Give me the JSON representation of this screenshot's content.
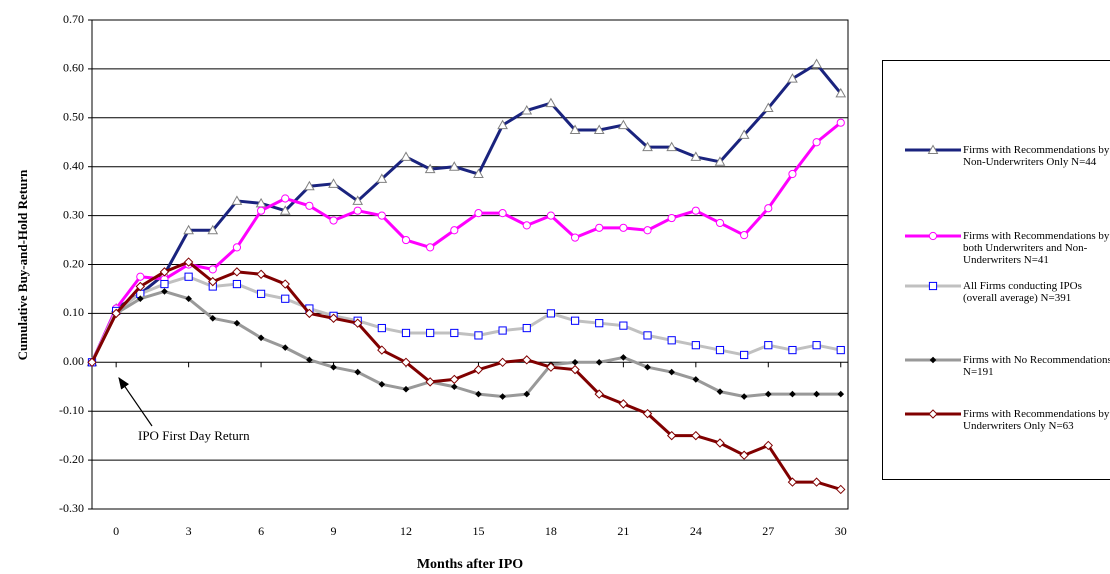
{
  "chart_data": {
    "type": "line",
    "y_label": "Cumulative Buy-and-Hold Return",
    "x_label": "Months after IPO",
    "annotation": "IPO First Day Return",
    "x": [
      -1,
      0,
      1,
      2,
      3,
      4,
      5,
      6,
      7,
      8,
      9,
      10,
      11,
      12,
      13,
      14,
      15,
      16,
      17,
      18,
      19,
      20,
      21,
      22,
      23,
      24,
      25,
      26,
      27,
      28,
      29,
      30
    ],
    "xlim": [
      -1,
      30.3
    ],
    "xticks": [
      0,
      3,
      6,
      9,
      12,
      15,
      18,
      21,
      24,
      27,
      30
    ],
    "ylim": [
      -0.3,
      0.7
    ],
    "yticks": [
      {
        "value": -0.3,
        "label": "-0.30"
      },
      {
        "value": -0.2,
        "label": "-0.20"
      },
      {
        "value": -0.1,
        "label": "-0.10"
      },
      {
        "value": 0,
        "label": "0.00"
      },
      {
        "value": 0.1,
        "label": "0.10"
      },
      {
        "value": 0.2,
        "label": "0.20"
      },
      {
        "value": 0.3,
        "label": "0.30"
      },
      {
        "value": 0.4,
        "label": "0.40"
      },
      {
        "value": 0.5,
        "label": "0.50"
      },
      {
        "value": 0.6,
        "label": "0.60"
      },
      {
        "value": 0.7,
        "label": "0.70"
      }
    ],
    "grid": true,
    "legend": "right",
    "series": [
      {
        "name": "Firms with Recommendations by Non-Underwriters Only N=44",
        "color": "#1a237e",
        "marker": "triangle",
        "marker_color": "#808080",
        "values": [
          0,
          0.11,
          0.14,
          0.18,
          0.27,
          0.27,
          0.33,
          0.325,
          0.31,
          0.36,
          0.365,
          0.33,
          0.375,
          0.42,
          0.395,
          0.4,
          0.385,
          0.485,
          0.515,
          0.53,
          0.475,
          0.475,
          0.485,
          0.44,
          0.44,
          0.42,
          0.41,
          0.465,
          0.52,
          0.58,
          0.61,
          0.55
        ]
      },
      {
        "name": "Firms with Recommendations by both Underwriters and Non-Underwriters N=41",
        "color": "#ff00ff",
        "marker": "circle",
        "marker_color": "#ff00ff",
        "values": [
          0,
          0.11,
          0.175,
          0.17,
          0.2,
          0.19,
          0.235,
          0.31,
          0.335,
          0.32,
          0.29,
          0.31,
          0.3,
          0.25,
          0.235,
          0.27,
          0.305,
          0.305,
          0.28,
          0.3,
          0.255,
          0.275,
          0.275,
          0.27,
          0.295,
          0.31,
          0.285,
          0.26,
          0.315,
          0.385,
          0.45,
          0.49
        ]
      },
      {
        "name": "All Firms conducting IPOs (overall average) N=391",
        "color": "#c0c0c0",
        "marker": "square",
        "marker_color": "#0000ff",
        "values": [
          0,
          0.105,
          0.14,
          0.16,
          0.175,
          0.155,
          0.16,
          0.14,
          0.13,
          0.11,
          0.095,
          0.085,
          0.07,
          0.06,
          0.06,
          0.06,
          0.055,
          0.065,
          0.07,
          0.1,
          0.085,
          0.08,
          0.075,
          0.055,
          0.045,
          0.035,
          0.025,
          0.015,
          0.035,
          0.025,
          0.035,
          0.025
        ]
      },
      {
        "name": "Firms with No Recommendations N=191",
        "color": "#999999",
        "marker": "dot",
        "marker_color": "#000000",
        "values": [
          0,
          0.1,
          0.13,
          0.145,
          0.13,
          0.09,
          0.08,
          0.05,
          0.03,
          0.005,
          -0.01,
          -0.02,
          -0.045,
          -0.055,
          -0.04,
          -0.05,
          -0.065,
          -0.07,
          -0.065,
          -0.005,
          0,
          0,
          0.01,
          -0.01,
          -0.02,
          -0.035,
          -0.06,
          -0.07,
          -0.065,
          -0.065,
          -0.065,
          -0.065
        ]
      },
      {
        "name": "Firms with Recommendations by Underwriters Only N=63",
        "color": "#800000",
        "marker": "diamond",
        "marker_color": "#800000",
        "values": [
          0,
          0.1,
          0.155,
          0.185,
          0.205,
          0.165,
          0.185,
          0.18,
          0.16,
          0.1,
          0.09,
          0.08,
          0.025,
          0,
          -0.04,
          -0.035,
          -0.015,
          0,
          0.005,
          -0.01,
          -0.015,
          -0.065,
          -0.085,
          -0.105,
          -0.15,
          -0.15,
          -0.165,
          -0.19,
          -0.17,
          -0.245,
          -0.245,
          -0.26
        ]
      }
    ]
  }
}
